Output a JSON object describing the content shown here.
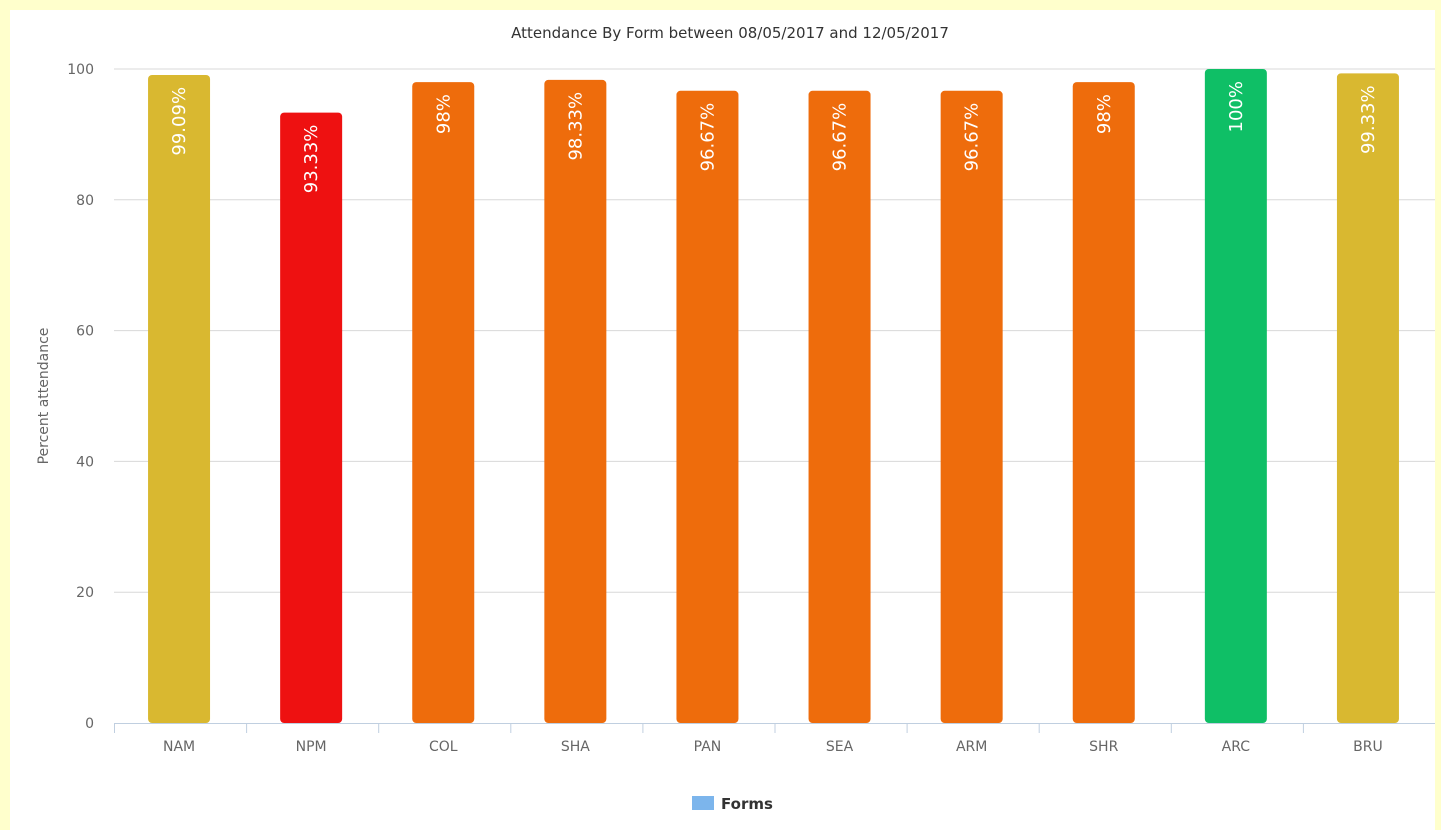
{
  "chart_data": {
    "type": "bar",
    "title": "Attendance By Form between 08/05/2017 and 12/05/2017",
    "xlabel": "",
    "ylabel": "Percent attendance",
    "ylim": [
      0,
      100
    ],
    "yticks": [
      0,
      20,
      40,
      60,
      80,
      100
    ],
    "grid": true,
    "legend": {
      "position": "bottom-center",
      "entries": [
        {
          "label": "Forms",
          "color": "#7cb5ec"
        }
      ]
    },
    "categories": [
      "NAM",
      "NPM",
      "COL",
      "SHA",
      "PAN",
      "SEA",
      "ARM",
      "SHR",
      "ARC",
      "BRU"
    ],
    "values": [
      99.09,
      93.33,
      98,
      98.33,
      96.67,
      96.67,
      96.67,
      98,
      100,
      99.33
    ],
    "labels": [
      "99.09%",
      "93.33%",
      "98%",
      "98.33%",
      "96.67%",
      "96.67%",
      "96.67%",
      "98%",
      "100%",
      "99.33%"
    ],
    "colors": [
      "#d9b830",
      "#ee1111",
      "#ee6c0c",
      "#ee6c0c",
      "#ee6c0c",
      "#ee6c0c",
      "#ee6c0c",
      "#ee6c0c",
      "#0fbf66",
      "#d9b830"
    ],
    "series": [
      {
        "name": "Forms",
        "values": [
          99.09,
          93.33,
          98,
          98.33,
          96.67,
          96.67,
          96.67,
          98,
          100,
          99.33
        ]
      }
    ]
  }
}
